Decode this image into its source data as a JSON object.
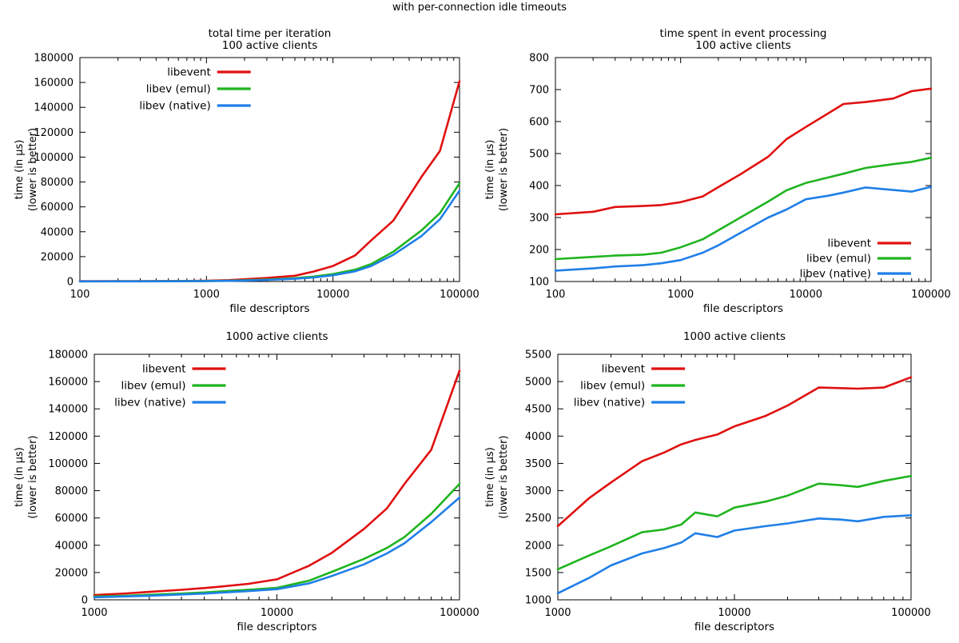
{
  "figure_title": "with per-connection idle timeouts",
  "axis_labels": {
    "xlabel": "file descriptors",
    "ylabel_line1": "time (in µs)",
    "ylabel_line2": "(lower is better)"
  },
  "legend_labels": [
    "libevent",
    "libev (emul)",
    "libev (native)"
  ],
  "colors": {
    "libevent": "#e01010",
    "libev_emul": "#1fb41f",
    "libev_native": "#1f7fe8",
    "text": "#000000",
    "border": "#000000"
  },
  "chart_data": [
    {
      "id": "total-100",
      "type": "line",
      "title": [
        "total time per iteration",
        "100 active clients"
      ],
      "x_axis": {
        "scale": "log",
        "min": 100,
        "max": 100000,
        "ticks": [
          100,
          1000,
          10000,
          100000
        ],
        "label": "file descriptors"
      },
      "y_axis": {
        "scale": "linear",
        "min": 0,
        "max": 180000,
        "tick_step": 20000
      },
      "legend_position": "top-center",
      "series": [
        {
          "name": "libevent",
          "color": "#e01010",
          "points": [
            [
              100,
              250
            ],
            [
              200,
              280
            ],
            [
              300,
              320
            ],
            [
              500,
              380
            ],
            [
              700,
              450
            ],
            [
              1000,
              650
            ],
            [
              1500,
              1100
            ],
            [
              2000,
              1800
            ],
            [
              3000,
              2800
            ],
            [
              5000,
              4600
            ],
            [
              7000,
              8000
            ],
            [
              10000,
              12500
            ],
            [
              15000,
              21000
            ],
            [
              20000,
              33000
            ],
            [
              30000,
              49000
            ],
            [
              50000,
              84000
            ],
            [
              70000,
              105000
            ],
            [
              100000,
              161000
            ]
          ]
        },
        {
          "name": "libev (emul)",
          "color": "#1fb41f",
          "points": [
            [
              100,
              150
            ],
            [
              200,
              170
            ],
            [
              300,
              200
            ],
            [
              500,
              230
            ],
            [
              700,
              280
            ],
            [
              1000,
              400
            ],
            [
              1500,
              650
            ],
            [
              2000,
              1000
            ],
            [
              3000,
              1600
            ],
            [
              5000,
              2700
            ],
            [
              7000,
              3900
            ],
            [
              10000,
              6000
            ],
            [
              15000,
              9500
            ],
            [
              20000,
              14000
            ],
            [
              30000,
              24000
            ],
            [
              50000,
              41000
            ],
            [
              70000,
              55000
            ],
            [
              100000,
              79000
            ]
          ]
        },
        {
          "name": "libev (native)",
          "color": "#1f7fe8",
          "points": [
            [
              100,
              120
            ],
            [
              200,
              140
            ],
            [
              300,
              160
            ],
            [
              500,
              190
            ],
            [
              700,
              230
            ],
            [
              1000,
              320
            ],
            [
              1500,
              520
            ],
            [
              2000,
              800
            ],
            [
              3000,
              1300
            ],
            [
              5000,
              2200
            ],
            [
              7000,
              3200
            ],
            [
              10000,
              5000
            ],
            [
              15000,
              8200
            ],
            [
              20000,
              12500
            ],
            [
              30000,
              21500
            ],
            [
              50000,
              36500
            ],
            [
              70000,
              50000
            ],
            [
              100000,
              73000
            ]
          ]
        }
      ]
    },
    {
      "id": "event-100",
      "type": "line",
      "title": [
        "time spent in event processing",
        "100 active clients"
      ],
      "x_axis": {
        "scale": "log",
        "min": 100,
        "max": 100000,
        "ticks": [
          100,
          1000,
          10000,
          100000
        ],
        "label": "file descriptors"
      },
      "y_axis": {
        "scale": "linear",
        "min": 100,
        "max": 800,
        "tick_step": 100
      },
      "legend_position": "bottom-right",
      "series": [
        {
          "name": "libevent",
          "color": "#e01010",
          "points": [
            [
              100,
              310
            ],
            [
              200,
              318
            ],
            [
              300,
              333
            ],
            [
              500,
              336
            ],
            [
              700,
              339
            ],
            [
              1000,
              348
            ],
            [
              1500,
              366
            ],
            [
              2000,
              395
            ],
            [
              3000,
              435
            ],
            [
              5000,
              490
            ],
            [
              7000,
              545
            ],
            [
              10000,
              583
            ],
            [
              15000,
              625
            ],
            [
              20000,
              655
            ],
            [
              30000,
              661
            ],
            [
              50000,
              672
            ],
            [
              70000,
              695
            ],
            [
              100000,
              703
            ]
          ]
        },
        {
          "name": "libev (emul)",
          "color": "#1fb41f",
          "points": [
            [
              100,
              170
            ],
            [
              200,
              177
            ],
            [
              300,
              181
            ],
            [
              500,
              184
            ],
            [
              700,
              190
            ],
            [
              1000,
              207
            ],
            [
              1500,
              232
            ],
            [
              2000,
              260
            ],
            [
              3000,
              300
            ],
            [
              5000,
              350
            ],
            [
              7000,
              385
            ],
            [
              10000,
              408
            ],
            [
              15000,
              425
            ],
            [
              20000,
              437
            ],
            [
              30000,
              455
            ],
            [
              50000,
              467
            ],
            [
              70000,
              474
            ],
            [
              100000,
              487
            ]
          ]
        },
        {
          "name": "libev (native)",
          "color": "#1f7fe8",
          "points": [
            [
              100,
              134
            ],
            [
              200,
              141
            ],
            [
              300,
              147
            ],
            [
              500,
              151
            ],
            [
              700,
              157
            ],
            [
              1000,
              167
            ],
            [
              1500,
              190
            ],
            [
              2000,
              213
            ],
            [
              3000,
              252
            ],
            [
              5000,
              300
            ],
            [
              7000,
              325
            ],
            [
              10000,
              357
            ],
            [
              15000,
              368
            ],
            [
              20000,
              378
            ],
            [
              30000,
              394
            ],
            [
              50000,
              386
            ],
            [
              70000,
              381
            ],
            [
              100000,
              396
            ]
          ]
        }
      ]
    },
    {
      "id": "total-1000",
      "type": "line",
      "title": [
        "1000 active clients"
      ],
      "x_axis": {
        "scale": "log",
        "min": 1000,
        "max": 100000,
        "ticks": [
          1000,
          10000,
          100000
        ],
        "label": "file descriptors"
      },
      "y_axis": {
        "scale": "linear",
        "min": 0,
        "max": 180000,
        "tick_step": 20000
      },
      "legend_position": "top-left",
      "series": [
        {
          "name": "libevent",
          "color": "#e01010",
          "points": [
            [
              1000,
              3500
            ],
            [
              1500,
              4700
            ],
            [
              2000,
              5800
            ],
            [
              3000,
              7300
            ],
            [
              4000,
              8600
            ],
            [
              5000,
              9800
            ],
            [
              7000,
              11700
            ],
            [
              10000,
              15000
            ],
            [
              15000,
              25000
            ],
            [
              20000,
              34500
            ],
            [
              30000,
              52000
            ],
            [
              40000,
              67000
            ],
            [
              50000,
              85000
            ],
            [
              70000,
              110000
            ],
            [
              100000,
              168000
            ]
          ]
        },
        {
          "name": "libev (emul)",
          "color": "#1fb41f",
          "points": [
            [
              1000,
              2400
            ],
            [
              1500,
              3000
            ],
            [
              2000,
              3700
            ],
            [
              3000,
              4600
            ],
            [
              4000,
              5400
            ],
            [
              5000,
              6200
            ],
            [
              7000,
              7400
            ],
            [
              10000,
              8800
            ],
            [
              15000,
              14000
            ],
            [
              20000,
              20500
            ],
            [
              30000,
              30000
            ],
            [
              40000,
              38000
            ],
            [
              50000,
              46000
            ],
            [
              70000,
              63000
            ],
            [
              100000,
              85000
            ]
          ]
        },
        {
          "name": "libev (native)",
          "color": "#1f7fe8",
          "points": [
            [
              1000,
              1900
            ],
            [
              1500,
              2500
            ],
            [
              2000,
              3000
            ],
            [
              3000,
              3900
            ],
            [
              4000,
              4600
            ],
            [
              5000,
              5300
            ],
            [
              7000,
              6400
            ],
            [
              10000,
              7800
            ],
            [
              15000,
              12000
            ],
            [
              20000,
              17500
            ],
            [
              30000,
              26000
            ],
            [
              40000,
              34000
            ],
            [
              50000,
              41500
            ],
            [
              70000,
              57000
            ],
            [
              100000,
              75000
            ]
          ]
        }
      ]
    },
    {
      "id": "event-1000",
      "type": "line",
      "title": [
        "1000 active clients"
      ],
      "x_axis": {
        "scale": "log",
        "min": 1000,
        "max": 100000,
        "ticks": [
          1000,
          10000,
          100000
        ],
        "label": "file descriptors"
      },
      "y_axis": {
        "scale": "linear",
        "min": 1000,
        "max": 5500,
        "tick_step": 500
      },
      "legend_position": "top-left",
      "series": [
        {
          "name": "libevent",
          "color": "#e01010",
          "points": [
            [
              1000,
              2350
            ],
            [
              1500,
              2860
            ],
            [
              2000,
              3150
            ],
            [
              3000,
              3540
            ],
            [
              4000,
              3700
            ],
            [
              5000,
              3850
            ],
            [
              6000,
              3930
            ],
            [
              8000,
              4030
            ],
            [
              10000,
              4180
            ],
            [
              15000,
              4370
            ],
            [
              20000,
              4560
            ],
            [
              30000,
              4890
            ],
            [
              40000,
              4880
            ],
            [
              50000,
              4870
            ],
            [
              70000,
              4890
            ],
            [
              100000,
              5080
            ]
          ]
        },
        {
          "name": "libev (emul)",
          "color": "#1fb41f",
          "points": [
            [
              1000,
              1560
            ],
            [
              1500,
              1810
            ],
            [
              2000,
              1980
            ],
            [
              3000,
              2240
            ],
            [
              4000,
              2290
            ],
            [
              5000,
              2380
            ],
            [
              6000,
              2600
            ],
            [
              8000,
              2530
            ],
            [
              10000,
              2690
            ],
            [
              15000,
              2800
            ],
            [
              20000,
              2910
            ],
            [
              30000,
              3130
            ],
            [
              40000,
              3100
            ],
            [
              50000,
              3070
            ],
            [
              70000,
              3180
            ],
            [
              100000,
              3270
            ]
          ]
        },
        {
          "name": "libev (native)",
          "color": "#1f7fe8",
          "points": [
            [
              1000,
              1120
            ],
            [
              1500,
              1400
            ],
            [
              2000,
              1630
            ],
            [
              3000,
              1850
            ],
            [
              4000,
              1950
            ],
            [
              5000,
              2050
            ],
            [
              6000,
              2220
            ],
            [
              8000,
              2150
            ],
            [
              10000,
              2270
            ],
            [
              15000,
              2350
            ],
            [
              20000,
              2400
            ],
            [
              30000,
              2490
            ],
            [
              40000,
              2470
            ],
            [
              50000,
              2440
            ],
            [
              70000,
              2520
            ],
            [
              100000,
              2550
            ]
          ]
        }
      ]
    }
  ]
}
